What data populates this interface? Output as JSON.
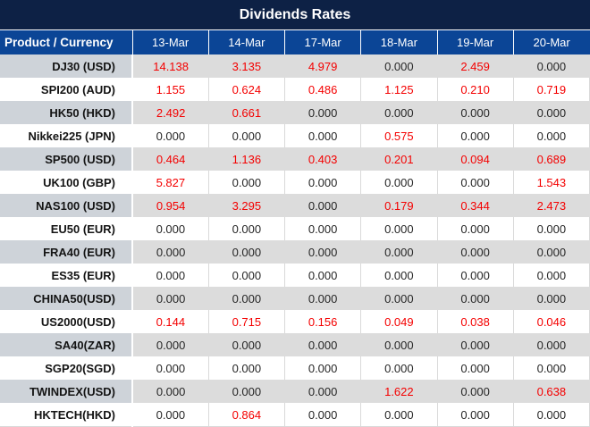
{
  "chart_data": {
    "type": "table",
    "title": "Dividends Rates",
    "columns": [
      "Product / Currency",
      "13-Mar",
      "14-Mar",
      "17-Mar",
      "18-Mar",
      "19-Mar",
      "20-Mar"
    ],
    "zero_value": "0.000",
    "rows": [
      {
        "product": "DJ30 (USD)",
        "values": [
          "14.138",
          "3.135",
          "4.979",
          "0.000",
          "2.459",
          "0.000"
        ]
      },
      {
        "product": "SPI200 (AUD)",
        "values": [
          "1.155",
          "0.624",
          "0.486",
          "1.125",
          "0.210",
          "0.719"
        ]
      },
      {
        "product": "HK50 (HKD)",
        "values": [
          "2.492",
          "0.661",
          "0.000",
          "0.000",
          "0.000",
          "0.000"
        ]
      },
      {
        "product": "Nikkei225 (JPN)",
        "values": [
          "0.000",
          "0.000",
          "0.000",
          "0.575",
          "0.000",
          "0.000"
        ]
      },
      {
        "product": "SP500 (USD)",
        "values": [
          "0.464",
          "1.136",
          "0.403",
          "0.201",
          "0.094",
          "0.689"
        ]
      },
      {
        "product": "UK100 (GBP)",
        "values": [
          "5.827",
          "0.000",
          "0.000",
          "0.000",
          "0.000",
          "1.543"
        ]
      },
      {
        "product": "NAS100 (USD)",
        "values": [
          "0.954",
          "3.295",
          "0.000",
          "0.179",
          "0.344",
          "2.473"
        ]
      },
      {
        "product": "EU50 (EUR)",
        "values": [
          "0.000",
          "0.000",
          "0.000",
          "0.000",
          "0.000",
          "0.000"
        ]
      },
      {
        "product": "FRA40 (EUR)",
        "values": [
          "0.000",
          "0.000",
          "0.000",
          "0.000",
          "0.000",
          "0.000"
        ]
      },
      {
        "product": "ES35 (EUR)",
        "values": [
          "0.000",
          "0.000",
          "0.000",
          "0.000",
          "0.000",
          "0.000"
        ]
      },
      {
        "product": "CHINA50(USD)",
        "values": [
          "0.000",
          "0.000",
          "0.000",
          "0.000",
          "0.000",
          "0.000"
        ]
      },
      {
        "product": "US2000(USD)",
        "values": [
          "0.144",
          "0.715",
          "0.156",
          "0.049",
          "0.038",
          "0.046"
        ]
      },
      {
        "product": "SA40(ZAR)",
        "values": [
          "0.000",
          "0.000",
          "0.000",
          "0.000",
          "0.000",
          "0.000"
        ]
      },
      {
        "product": "SGP20(SGD)",
        "values": [
          "0.000",
          "0.000",
          "0.000",
          "0.000",
          "0.000",
          "0.000"
        ]
      },
      {
        "product": "TWINDEX(USD)",
        "values": [
          "0.000",
          "0.000",
          "0.000",
          "1.622",
          "0.000",
          "0.638"
        ]
      },
      {
        "product": "HKTECH(HKD)",
        "values": [
          "0.000",
          "0.864",
          "0.000",
          "0.000",
          "0.000",
          "0.000"
        ]
      }
    ]
  },
  "colors": {
    "title_bar_bg": "#0D2145",
    "header_bg": "#0B4596",
    "header_text": "#FFFFFF",
    "stripe_value_bg": "#DCDCDC",
    "stripe_product_bg": "#CED3D9",
    "white_row_bg": "#FFFFFF",
    "gridline": "#D9D9D9",
    "zero_value_text": "#262626",
    "nonzero_value_text": "#F40000"
  }
}
